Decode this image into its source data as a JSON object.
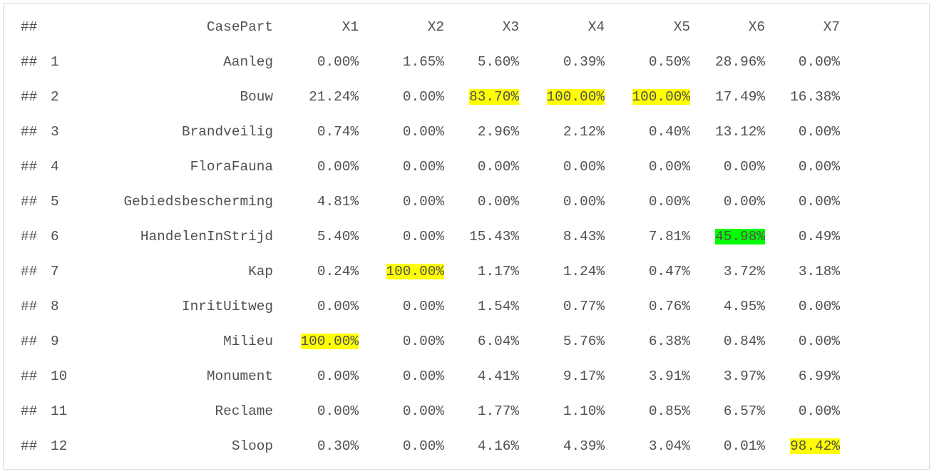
{
  "console": {
    "prefix": "##",
    "header": {
      "index": "",
      "name": "CasePart",
      "cols": [
        "X1",
        "X2",
        "X3",
        "X4",
        "X5",
        "X6",
        "X7"
      ]
    },
    "rows": [
      {
        "index": "1",
        "name": "Aanleg",
        "values": [
          "0.00%",
          "1.65%",
          "5.60%",
          "0.39%",
          "0.50%",
          "28.96%",
          "0.00%"
        ],
        "highlight": [
          null,
          null,
          null,
          null,
          null,
          null,
          null
        ]
      },
      {
        "index": "2",
        "name": "Bouw",
        "values": [
          "21.24%",
          "0.00%",
          "83.70%",
          "100.00%",
          "100.00%",
          "17.49%",
          "16.38%"
        ],
        "highlight": [
          null,
          null,
          "yellow",
          "yellow",
          "yellow",
          null,
          null
        ]
      },
      {
        "index": "3",
        "name": "Brandveilig",
        "values": [
          "0.74%",
          "0.00%",
          "2.96%",
          "2.12%",
          "0.40%",
          "13.12%",
          "0.00%"
        ],
        "highlight": [
          null,
          null,
          null,
          null,
          null,
          null,
          null
        ]
      },
      {
        "index": "4",
        "name": "FloraFauna",
        "values": [
          "0.00%",
          "0.00%",
          "0.00%",
          "0.00%",
          "0.00%",
          "0.00%",
          "0.00%"
        ],
        "highlight": [
          null,
          null,
          null,
          null,
          null,
          null,
          null
        ]
      },
      {
        "index": "5",
        "name": "Gebiedsbescherming",
        "values": [
          "4.81%",
          "0.00%",
          "0.00%",
          "0.00%",
          "0.00%",
          "0.00%",
          "0.00%"
        ],
        "highlight": [
          null,
          null,
          null,
          null,
          null,
          null,
          null
        ]
      },
      {
        "index": "6",
        "name": "HandelenInStrijd",
        "values": [
          "5.40%",
          "0.00%",
          "15.43%",
          "8.43%",
          "7.81%",
          "45.98%",
          "0.49%"
        ],
        "highlight": [
          null,
          null,
          null,
          null,
          null,
          "green",
          null
        ]
      },
      {
        "index": "7",
        "name": "Kap",
        "values": [
          "0.24%",
          "100.00%",
          "1.17%",
          "1.24%",
          "0.47%",
          "3.72%",
          "3.18%"
        ],
        "highlight": [
          null,
          "yellow",
          null,
          null,
          null,
          null,
          null
        ]
      },
      {
        "index": "8",
        "name": "InritUitweg",
        "values": [
          "0.00%",
          "0.00%",
          "1.54%",
          "0.77%",
          "0.76%",
          "4.95%",
          "0.00%"
        ],
        "highlight": [
          null,
          null,
          null,
          null,
          null,
          null,
          null
        ]
      },
      {
        "index": "9",
        "name": "Milieu",
        "values": [
          "100.00%",
          "0.00%",
          "6.04%",
          "5.76%",
          "6.38%",
          "0.84%",
          "0.00%"
        ],
        "highlight": [
          "yellow",
          null,
          null,
          null,
          null,
          null,
          null
        ]
      },
      {
        "index": "10",
        "name": "Monument",
        "values": [
          "0.00%",
          "0.00%",
          "4.41%",
          "9.17%",
          "3.91%",
          "3.97%",
          "6.99%"
        ],
        "highlight": [
          null,
          null,
          null,
          null,
          null,
          null,
          null
        ]
      },
      {
        "index": "11",
        "name": "Reclame",
        "values": [
          "0.00%",
          "0.00%",
          "1.77%",
          "1.10%",
          "0.85%",
          "6.57%",
          "0.00%"
        ],
        "highlight": [
          null,
          null,
          null,
          null,
          null,
          null,
          null
        ]
      },
      {
        "index": "12",
        "name": "Sloop",
        "values": [
          "0.30%",
          "0.00%",
          "4.16%",
          "4.39%",
          "3.04%",
          "0.01%",
          "98.42%"
        ],
        "highlight": [
          null,
          null,
          null,
          null,
          null,
          null,
          "yellow"
        ]
      }
    ],
    "colors": {
      "yellow": "#ffff00",
      "green": "#00ff00",
      "text": "#505050",
      "border": "#dcdcdc"
    }
  }
}
